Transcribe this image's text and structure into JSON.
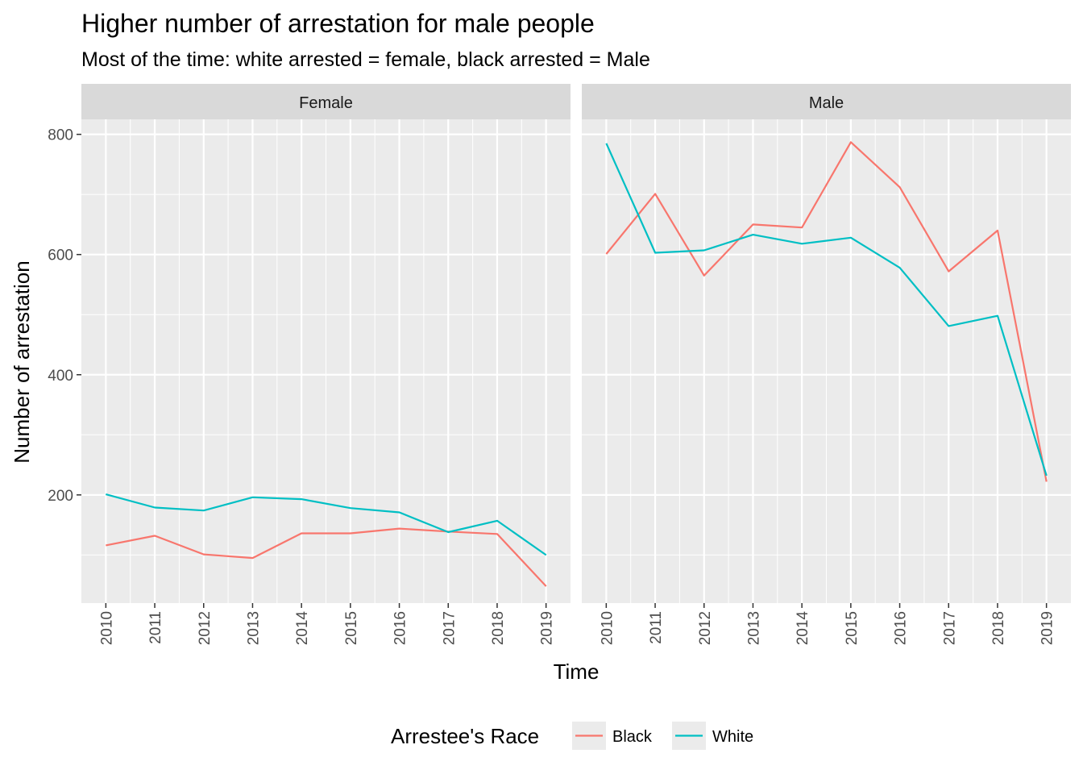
{
  "chart_data": {
    "type": "line",
    "title": "Higher number of arrestation for male people",
    "subtitle": "Most of the time: white arrested = female, black arrested = Male",
    "xlabel": "Time",
    "ylabel": "Number of arrestation",
    "x": [
      2010,
      2011,
      2012,
      2013,
      2014,
      2015,
      2016,
      2017,
      2018,
      2019
    ],
    "x_tick_labels": [
      "2010",
      "2011",
      "2012",
      "2013",
      "2014",
      "2015",
      "2016",
      "2017",
      "2018",
      "2019"
    ],
    "ylim": [
      20,
      825
    ],
    "y_ticks": [
      200,
      400,
      600,
      800
    ],
    "y_tick_labels": [
      "200",
      "400",
      "600",
      "800"
    ],
    "grid": true,
    "legend": {
      "title": "Arrestee's Race",
      "placement": "bottom",
      "entries": [
        {
          "label": "Black",
          "color": "#F8766D"
        },
        {
          "label": "White",
          "color": "#00BFC4"
        }
      ]
    },
    "facets": [
      {
        "label": "Female",
        "series": [
          {
            "name": "Black",
            "color": "#F8766D",
            "values": [
              116,
              132,
              101,
              95,
              136,
              136,
              144,
              139,
              135,
              48
            ]
          },
          {
            "name": "White",
            "color": "#00BFC4",
            "values": [
              201,
              179,
              174,
              196,
              193,
              178,
              171,
              138,
              157,
              100
            ]
          }
        ]
      },
      {
        "label": "Male",
        "series": [
          {
            "name": "Black",
            "color": "#F8766D",
            "values": [
              601,
              701,
              565,
              650,
              645,
              787,
              712,
              572,
              640,
              222
            ]
          },
          {
            "name": "White",
            "color": "#00BFC4",
            "values": [
              785,
              603,
              607,
              633,
              618,
              628,
              578,
              481,
              498,
              232
            ]
          }
        ]
      }
    ]
  }
}
